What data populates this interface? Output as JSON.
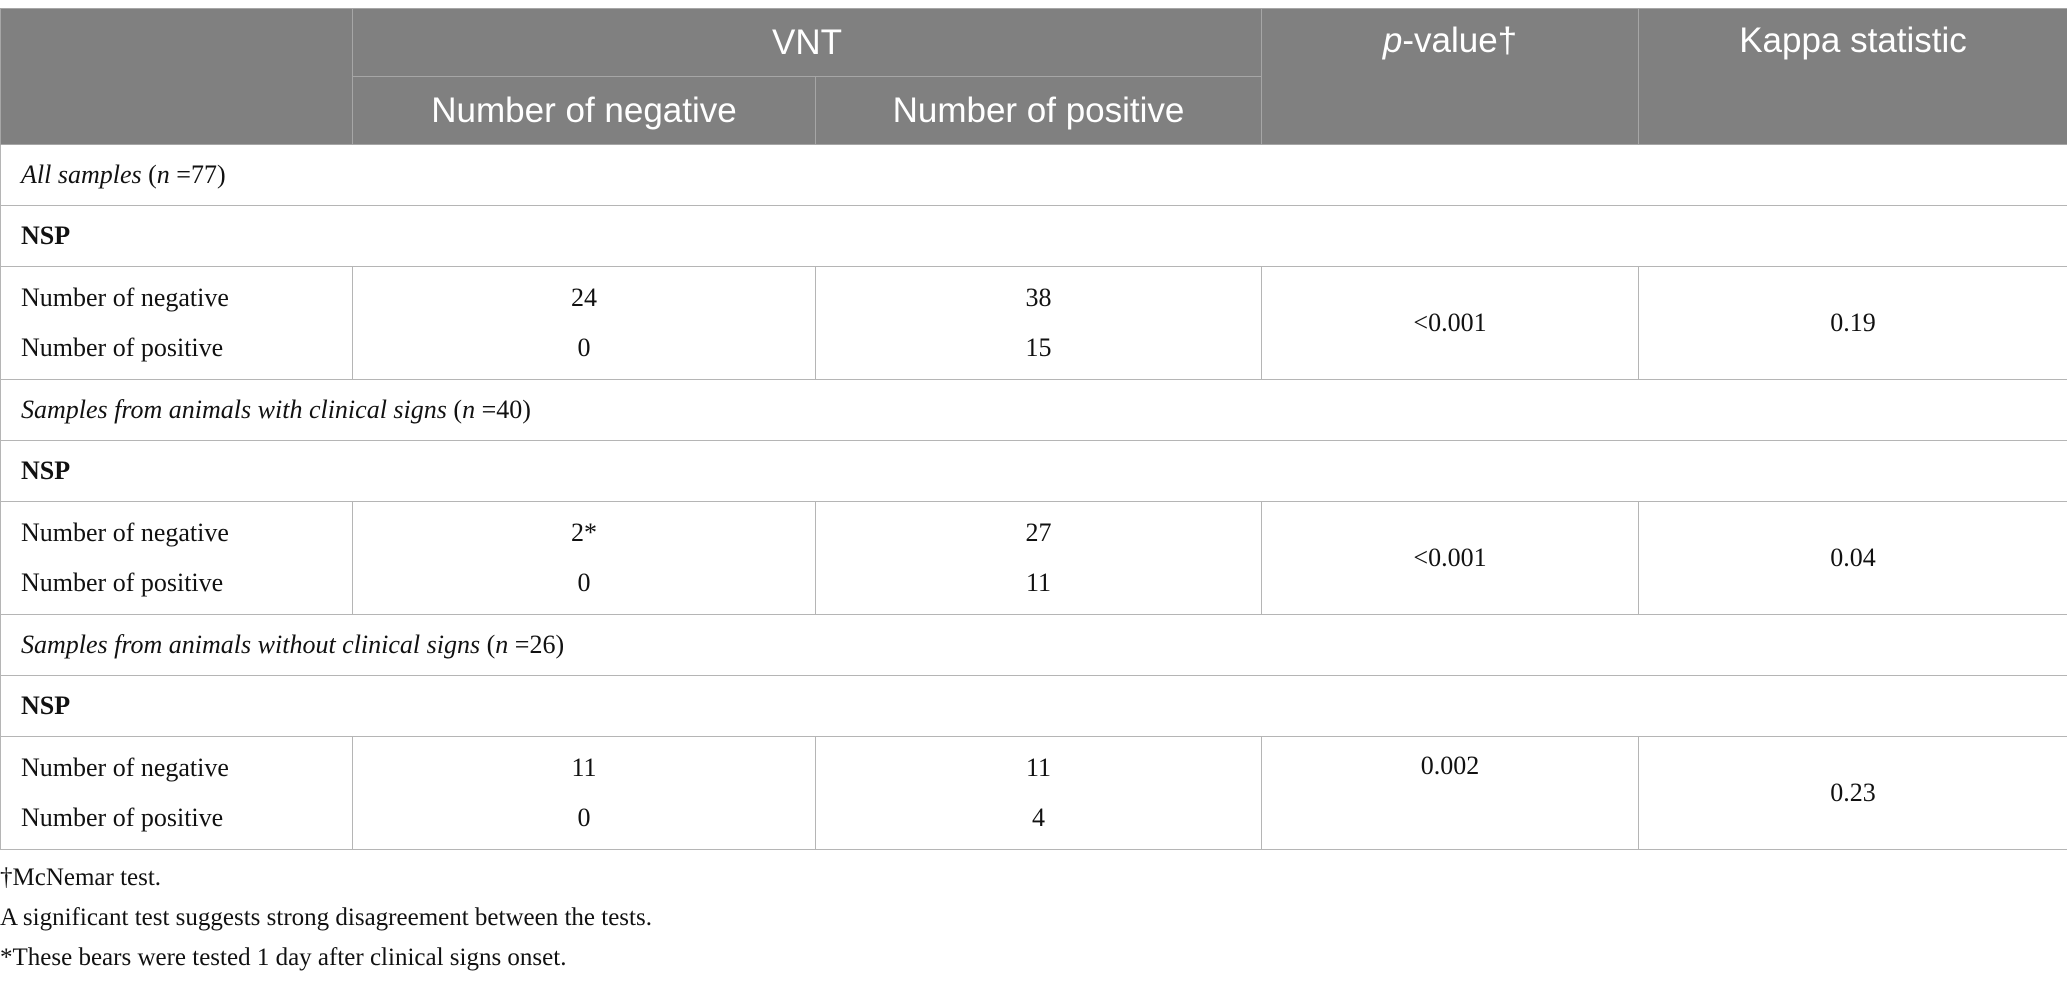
{
  "header": {
    "group_label": "VNT",
    "col_negative": "Number of negative",
    "col_positive": "Number of positive",
    "pvalue_italic": "p",
    "pvalue_rest": "-value†",
    "kappa": "Kappa statistic"
  },
  "groups": [
    {
      "title_italic": "All samples",
      "title_n_pre": " (",
      "title_n_var": "n",
      "title_n_post": " =77)",
      "test_label": "NSP",
      "row_neg_label": "Number of negative",
      "row_pos_label": "Number of positive",
      "neg_neg": "24",
      "neg_pos": "38",
      "pos_neg": "0",
      "pos_pos": "15",
      "p_value": "<0.001",
      "kappa": "0.19"
    },
    {
      "title_italic": "Samples from animals with clinical signs",
      "title_n_pre": " (",
      "title_n_var": "n",
      "title_n_post": " =40)",
      "test_label": "NSP",
      "row_neg_label": "Number of negative",
      "row_pos_label": "Number of positive",
      "neg_neg": "2*",
      "neg_pos": "27",
      "pos_neg": "0",
      "pos_pos": "11",
      "p_value": "<0.001",
      "kappa": "0.04"
    },
    {
      "title_italic": "Samples from animals without clinical signs",
      "title_n_pre": " (",
      "title_n_var": "n",
      "title_n_post": " =26)",
      "test_label": "NSP",
      "row_neg_label": "Number of negative",
      "row_pos_label": "Number of positive",
      "neg_neg": "11",
      "neg_pos": "11",
      "pos_neg": "0",
      "pos_pos": "4",
      "p_value": "0.002",
      "kappa": "0.23"
    }
  ],
  "footnotes": [
    "†McNemar test.",
    "A significant test suggests strong disagreement between the tests.",
    "*These bears were tested 1 day after clinical signs onset."
  ]
}
